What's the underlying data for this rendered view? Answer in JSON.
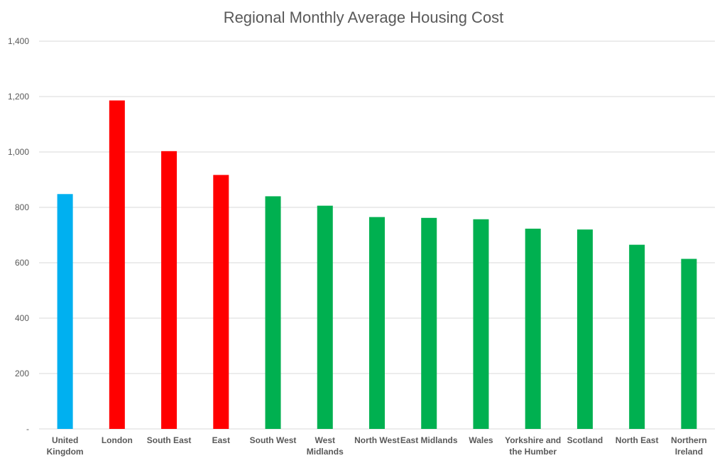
{
  "chart_data": {
    "type": "bar",
    "title": "Regional Monthly Average Housing Cost",
    "xlabel": "",
    "ylabel": "",
    "ylim": [
      0,
      1400
    ],
    "y_ticks": [
      0,
      200,
      400,
      600,
      800,
      1000,
      1200,
      1400
    ],
    "y_tick_labels": [
      "-",
      "200",
      "400",
      "600",
      "800",
      "1,000",
      "1,200",
      "1,400"
    ],
    "grid": true,
    "legend": "none",
    "categories": [
      [
        "United",
        "Kingdom"
      ],
      [
        "London"
      ],
      [
        "South East"
      ],
      [
        "East"
      ],
      [
        "South West"
      ],
      [
        "West",
        "Midlands"
      ],
      [
        "North West"
      ],
      [
        "East Midlands"
      ],
      [
        "Wales"
      ],
      [
        "Yorkshire and",
        "the Humber"
      ],
      [
        "Scotland"
      ],
      [
        "North East"
      ],
      [
        "Northern",
        "Ireland"
      ]
    ],
    "values": [
      848,
      1186,
      1003,
      917,
      840,
      806,
      765,
      762,
      757,
      723,
      720,
      665,
      614
    ],
    "bar_colors": [
      "#00b0f0",
      "#ff0000",
      "#ff0000",
      "#ff0000",
      "#00b050",
      "#00b050",
      "#00b050",
      "#00b050",
      "#00b050",
      "#00b050",
      "#00b050",
      "#00b050",
      "#00b050"
    ]
  },
  "colors": {
    "text": "#595959",
    "grid": "#d9d9d9"
  }
}
